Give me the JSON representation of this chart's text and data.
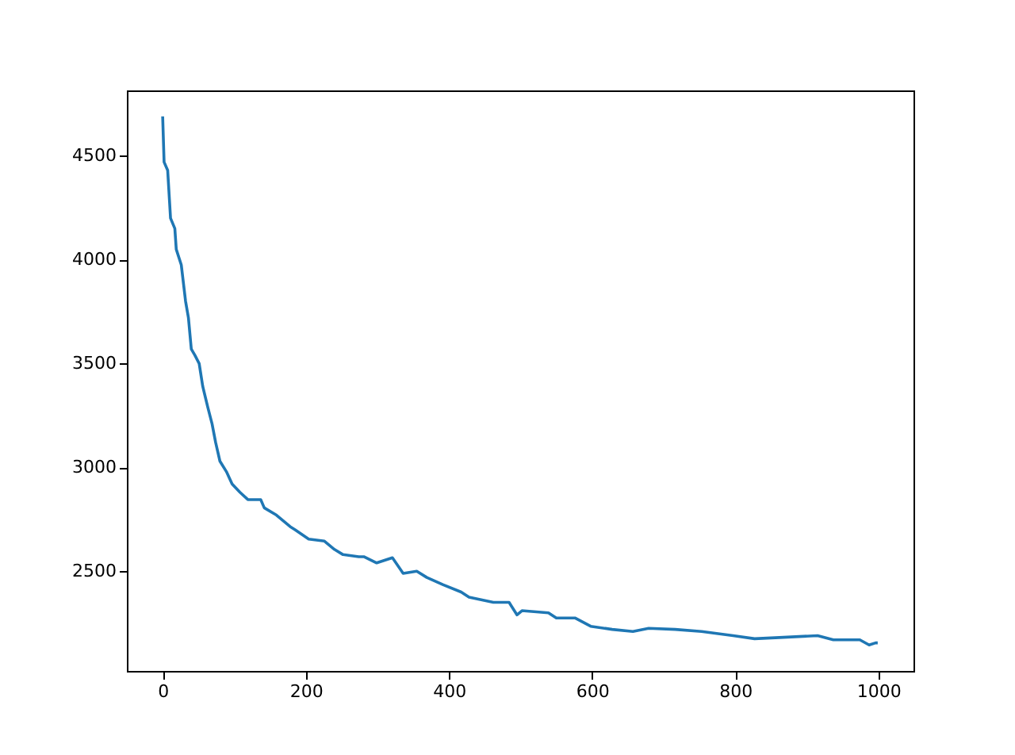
{
  "chart_data": {
    "type": "line",
    "x": [
      0,
      2,
      7,
      11,
      17,
      19,
      26,
      32,
      36,
      40,
      45,
      51,
      56,
      63,
      69,
      74,
      80,
      89,
      97,
      108,
      119,
      137,
      142,
      159,
      178,
      185,
      204,
      226,
      240,
      252,
      274,
      281,
      299,
      321,
      336,
      355,
      369,
      392,
      417,
      428,
      462,
      484,
      495,
      502,
      539,
      550,
      576,
      598,
      628,
      657,
      679,
      716,
      753,
      797,
      827,
      856,
      915,
      937,
      974,
      987,
      996,
      999
    ],
    "series": [
      {
        "color": "#1f77b4",
        "values": [
          4690,
          4470,
          4430,
          4200,
          4150,
          4050,
          3975,
          3800,
          3720,
          3570,
          3540,
          3500,
          3390,
          3290,
          3210,
          3120,
          3030,
          2980,
          2920,
          2880,
          2845,
          2845,
          2805,
          2770,
          2715,
          2700,
          2655,
          2645,
          2605,
          2580,
          2570,
          2570,
          2540,
          2565,
          2490,
          2500,
          2470,
          2435,
          2400,
          2375,
          2350,
          2350,
          2290,
          2310,
          2300,
          2275,
          2275,
          2235,
          2220,
          2210,
          2225,
          2220,
          2210,
          2190,
          2175,
          2180,
          2190,
          2170,
          2170,
          2145,
          2155,
          2155
        ]
      }
    ],
    "xlim": [
      -50,
      1049
    ],
    "ylim": [
      2020,
      4815
    ],
    "xticks": [
      0,
      200,
      400,
      600,
      800,
      1000
    ],
    "yticks": [
      2500,
      3000,
      3500,
      4000,
      4500
    ],
    "grid": false,
    "marker": "none",
    "line_style": "solid"
  }
}
